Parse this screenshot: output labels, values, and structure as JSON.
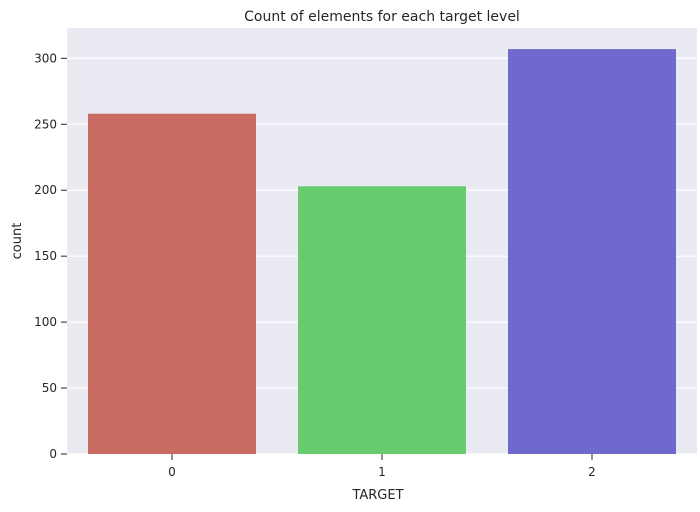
{
  "chart_data": {
    "type": "bar",
    "title": "Count of elements for each target level",
    "xlabel": "TARGET",
    "ylabel": "count",
    "categories": [
      "0",
      "1",
      "2"
    ],
    "values": [
      258,
      203,
      307
    ],
    "colors": [
      "#c96b63",
      "#67cb6f",
      "#6f68cd"
    ],
    "ylim": [
      0,
      323
    ],
    "yticks": [
      0,
      50,
      100,
      150,
      200,
      250,
      300
    ],
    "grid": true,
    "background": "#eaeaf2",
    "grid_color": "#ffffff"
  }
}
